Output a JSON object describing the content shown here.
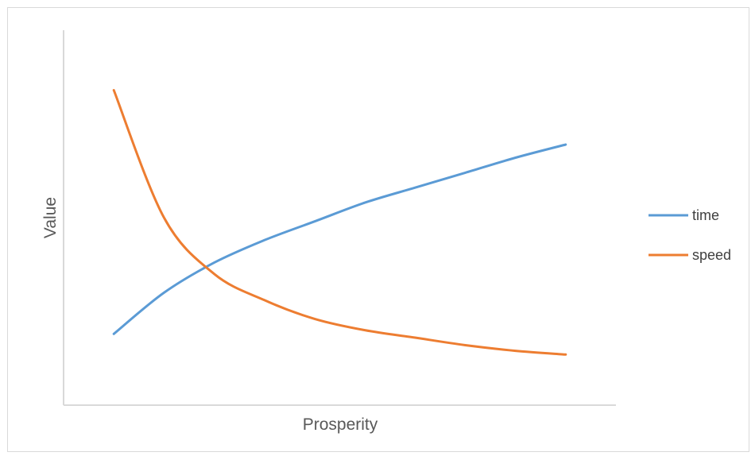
{
  "chart_data": {
    "type": "line",
    "title": "",
    "xlabel": "Prosperity",
    "ylabel": "Value",
    "x_ticks_shown": false,
    "y_ticks_shown": false,
    "grid": false,
    "legend_position": "right",
    "x": [
      1,
      2,
      3,
      4,
      5,
      6,
      7,
      8,
      9,
      10
    ],
    "xlim": [
      0,
      11
    ],
    "ylim": [
      0,
      10
    ],
    "series": [
      {
        "name": "time",
        "color": "#5B9BD5",
        "values": [
          1.9,
          3.0,
          3.8,
          4.4,
          4.9,
          5.4,
          5.8,
          6.2,
          6.6,
          6.95
        ]
      },
      {
        "name": "speed",
        "color": "#ED7D31",
        "values": [
          8.4,
          5.0,
          3.5,
          2.8,
          2.3,
          2.0,
          1.8,
          1.6,
          1.45,
          1.35
        ]
      }
    ]
  }
}
